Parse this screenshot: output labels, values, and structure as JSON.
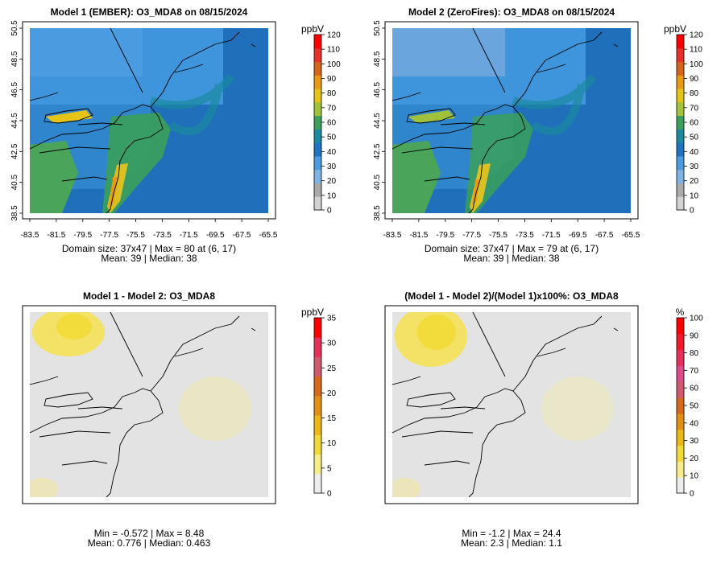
{
  "figure_label": "Ozone MDA8 model comparison over the northeastern US",
  "colors": {
    "water_model": "#1f6fba",
    "land_model": "#3f95dc",
    "diff_background": "#e3e3e3",
    "diff_hotspot": "#f3e266",
    "frame": "#000000"
  },
  "chart_data": [
    {
      "type": "heatmap",
      "title": "Model 1 (EMBER): O3_MDA8 on 08/15/2024",
      "legend_title": "ppbV",
      "legend_ticks": [
        "0",
        "10",
        "20",
        "30",
        "40",
        "50",
        "60",
        "70",
        "80",
        "90",
        "100",
        "110",
        "120"
      ],
      "legend_colors": [
        "#d2d2d2",
        "#aaaaaa",
        "#7fb3e6",
        "#4a9be0",
        "#1f74c2",
        "#1b8aa0",
        "#3aa05a",
        "#9fc23a",
        "#e6c317",
        "#e89a12",
        "#d5651a",
        "#e8302a",
        "#ff0000"
      ],
      "lat_ticks": [
        "38.5",
        "40.5",
        "42.5",
        "44.5",
        "46.5",
        "48.5",
        "50.5"
      ],
      "lon_ticks": [
        "-83.5",
        "-81.5",
        "-79.5",
        "-77.5",
        "-75.5",
        "-73.5",
        "-71.5",
        "-69.5",
        "-67.5",
        "-65.5"
      ],
      "stats_line1": "Domain size: 37x47 | Max = 80 at (6, 17)",
      "stats_line2": "Mean: 39 |  Median: 38",
      "domain_size": "37x47",
      "max": 80,
      "max_location": "(6, 17)",
      "mean": 39,
      "median": 38
    },
    {
      "type": "heatmap",
      "title": "Model 2 (ZeroFires): O3_MDA8 on 08/15/2024",
      "legend_title": "ppbV",
      "legend_ticks": [
        "0",
        "10",
        "20",
        "30",
        "40",
        "50",
        "60",
        "70",
        "80",
        "90",
        "100",
        "110",
        "120"
      ],
      "legend_colors": [
        "#d2d2d2",
        "#aaaaaa",
        "#7fb3e6",
        "#4a9be0",
        "#1f74c2",
        "#1b8aa0",
        "#3aa05a",
        "#9fc23a",
        "#e6c317",
        "#e89a12",
        "#d5651a",
        "#e8302a",
        "#ff0000"
      ],
      "lat_ticks": [
        "38.5",
        "40.5",
        "42.5",
        "44.5",
        "46.5",
        "48.5",
        "50.5"
      ],
      "lon_ticks": [
        "-83.5",
        "-81.5",
        "-79.5",
        "-77.5",
        "-75.5",
        "-73.5",
        "-71.5",
        "-69.5",
        "-67.5",
        "-65.5"
      ],
      "stats_line1": "Domain size: 37x47 | Max = 79 at (6, 17)",
      "stats_line2": "Mean: 39 |  Median: 38",
      "domain_size": "37x47",
      "max": 79,
      "max_location": "(6, 17)",
      "mean": 39,
      "median": 38
    },
    {
      "type": "heatmap",
      "title": "Model 1 - Model 2: O3_MDA8",
      "legend_title": "ppbV",
      "legend_ticks": [
        "0",
        "5",
        "10",
        "15",
        "20",
        "25",
        "30",
        "35"
      ],
      "legend_colors": [
        "#ededed",
        "#f6ec8a",
        "#f2d93a",
        "#ebb816",
        "#e28f15",
        "#d7691a",
        "#cf5a6e",
        "#e6305c",
        "#ff0000"
      ],
      "stats_line1": "Min = -0.572 | Max = 8.48",
      "stats_line2": "Mean: 0.776 |  Median: 0.463",
      "min": -0.572,
      "max": 8.48,
      "mean": 0.776,
      "median": 0.463
    },
    {
      "type": "heatmap",
      "title": "(Model 1 - Model 2)/(Model 1)x100%: O3_MDA8",
      "legend_title": "%",
      "legend_ticks": [
        "0",
        "10",
        "20",
        "30",
        "40",
        "50",
        "60",
        "70",
        "80",
        "90",
        "100"
      ],
      "legend_colors": [
        "#ededed",
        "#f6ec8a",
        "#f2d93a",
        "#ebb816",
        "#e28f15",
        "#d7691a",
        "#cf5a6e",
        "#db4d8a",
        "#e6305c",
        "#f21a2a",
        "#ff0000"
      ],
      "stats_line1": "Min = -1.2 | Max = 24.4",
      "stats_line2": "Mean: 2.3 |  Median: 1.1",
      "min": -1.2,
      "max": 24.4,
      "mean": 2.3,
      "median": 1.1
    }
  ]
}
